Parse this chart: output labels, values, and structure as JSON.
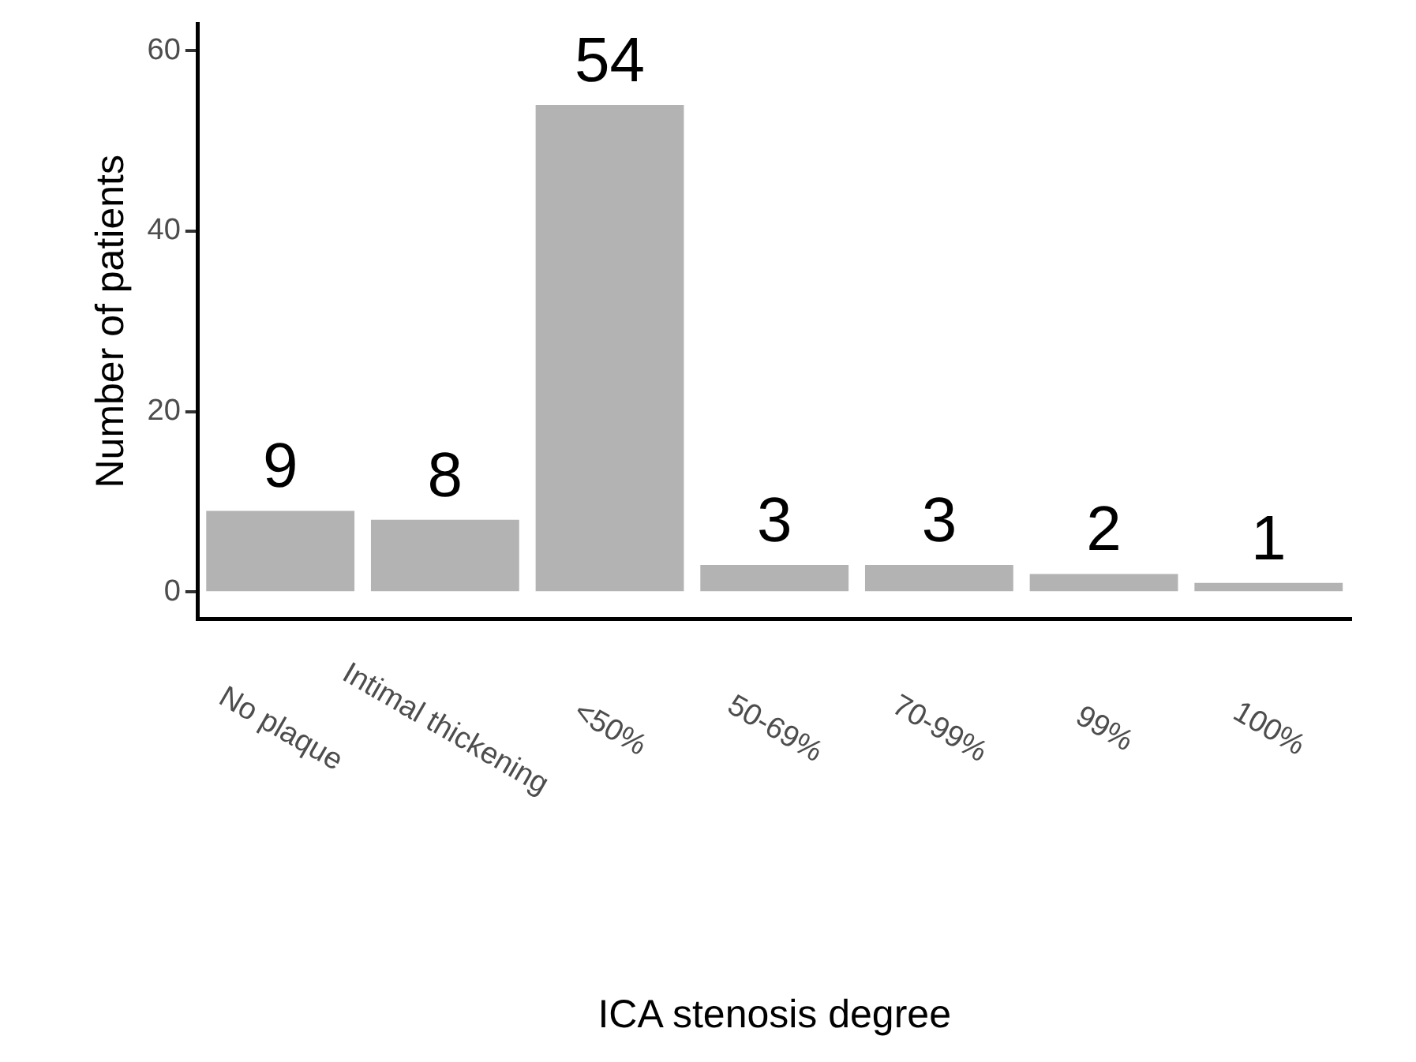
{
  "chart_data": {
    "type": "bar",
    "xlabel": "ICA stenosis degree",
    "ylabel": "Number of patients",
    "categories": [
      "No plaque",
      "Intimal thickening",
      "<50%",
      "50-69%",
      "70-99%",
      "99%",
      "100%"
    ],
    "values": [
      9,
      8,
      54,
      3,
      3,
      2,
      1
    ],
    "color": "#b3b3b3",
    "ylim": [
      -3,
      63
    ],
    "yticks": [
      0,
      20,
      40,
      60
    ],
    "grid": false,
    "legend": false,
    "data_labels": true
  }
}
